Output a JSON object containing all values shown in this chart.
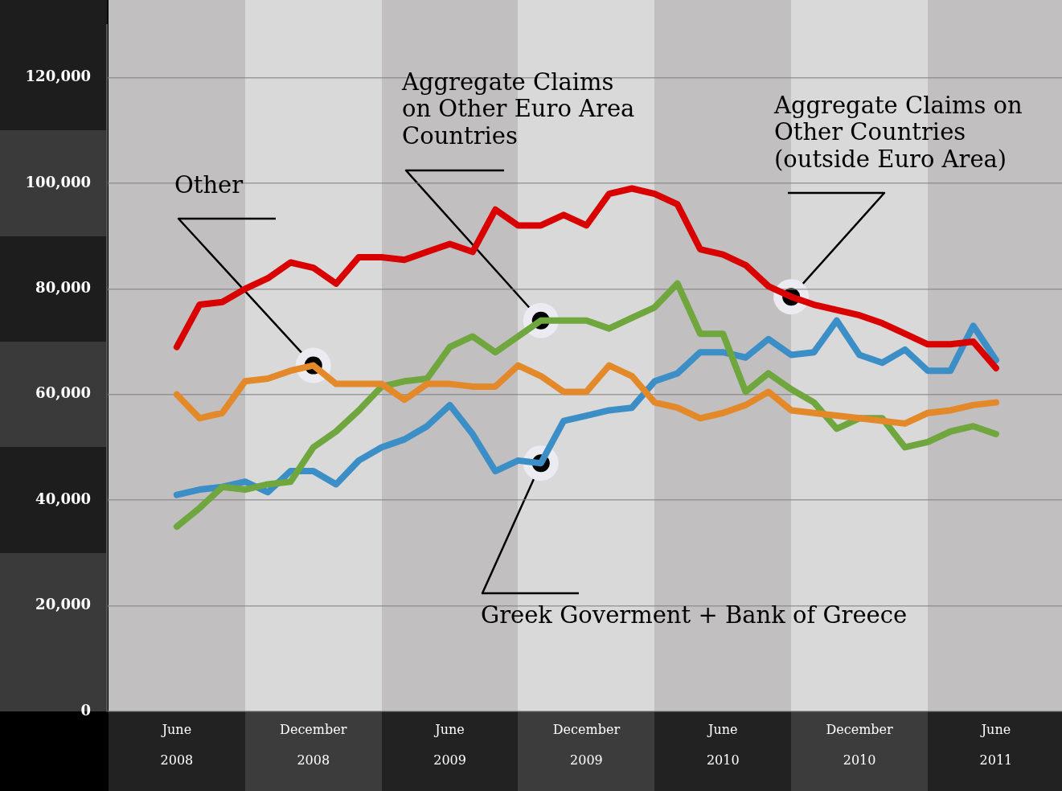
{
  "chart_data": {
    "type": "line",
    "categories": [
      "June 2008",
      null,
      null,
      null,
      null,
      null,
      "December 2008",
      null,
      null,
      null,
      null,
      null,
      "June 2009",
      null,
      null,
      null,
      null,
      null,
      "December 2009",
      null,
      null,
      null,
      null,
      null,
      "June 2010",
      null,
      null,
      null,
      null,
      null,
      "December 2010",
      null,
      null,
      null,
      null,
      null,
      "June 2011"
    ],
    "series": [
      {
        "name": "Other",
        "color": "#e3892a",
        "values": [
          60000,
          55500,
          56500,
          62500,
          63000,
          64500,
          65500,
          62000,
          62000,
          62000,
          59000,
          62000,
          62000,
          61500,
          61500,
          65500,
          63500,
          60500,
          60500,
          65500,
          63500,
          58500,
          57500,
          55500,
          56500,
          58000,
          60500,
          57000,
          56500,
          56000,
          55500,
          55000,
          54500,
          56500,
          57000,
          58000,
          58500
        ]
      },
      {
        "name": "Aggregate Claims on Other Euro Area Countries",
        "color": "#6fa63d",
        "values": [
          35000,
          38500,
          42500,
          42000,
          43000,
          43500,
          50000,
          53000,
          57000,
          61500,
          62500,
          63000,
          69000,
          71000,
          68000,
          71000,
          74000,
          74000,
          74000,
          72500,
          74500,
          76500,
          81000,
          71500,
          71500,
          60500,
          64000,
          61000,
          58500,
          53500,
          55500,
          55500,
          50000,
          51000,
          53000,
          54000,
          52500
        ]
      },
      {
        "name": "Aggregate Claims on Other Countries (outside Euro Area)",
        "color": "#d90000",
        "values": [
          69000,
          77000,
          77500,
          80000,
          82000,
          85000,
          84000,
          81000,
          86000,
          86000,
          85500,
          87000,
          88500,
          87000,
          95000,
          92000,
          92000,
          94000,
          92000,
          98000,
          99000,
          98000,
          96000,
          87500,
          86500,
          84500,
          80500,
          78500,
          77000,
          76000,
          75000,
          73500,
          71500,
          69500,
          69500,
          70000,
          65000
        ]
      },
      {
        "name": "Greek Goverment + Bank of Greece",
        "color": "#3b8fc6",
        "values": [
          41000,
          42000,
          42500,
          43500,
          41500,
          45500,
          45500,
          43000,
          47500,
          50000,
          51500,
          54000,
          58000,
          52500,
          45500,
          47500,
          47000,
          55000,
          56000,
          57000,
          57500,
          62500,
          64000,
          68000,
          68000,
          67000,
          70500,
          67500,
          68000,
          74000,
          67500,
          66000,
          68500,
          64500,
          64500,
          73000,
          66500
        ]
      }
    ],
    "ylim": [
      0,
      130000
    ],
    "yticks": [
      0,
      {
        "value": 20000,
        "label": "20,000"
      },
      {
        "value": 40000,
        "label": "40,000"
      },
      {
        "value": 60000,
        "label": "60,000"
      },
      {
        "value": 80000,
        "label": "80,000"
      },
      {
        "value": 100000,
        "label": "100,000"
      },
      {
        "value": 120000,
        "label": "120,000"
      }
    ],
    "grid": "y",
    "legend": false,
    "marker": "none",
    "line_style": "solid"
  }
}
